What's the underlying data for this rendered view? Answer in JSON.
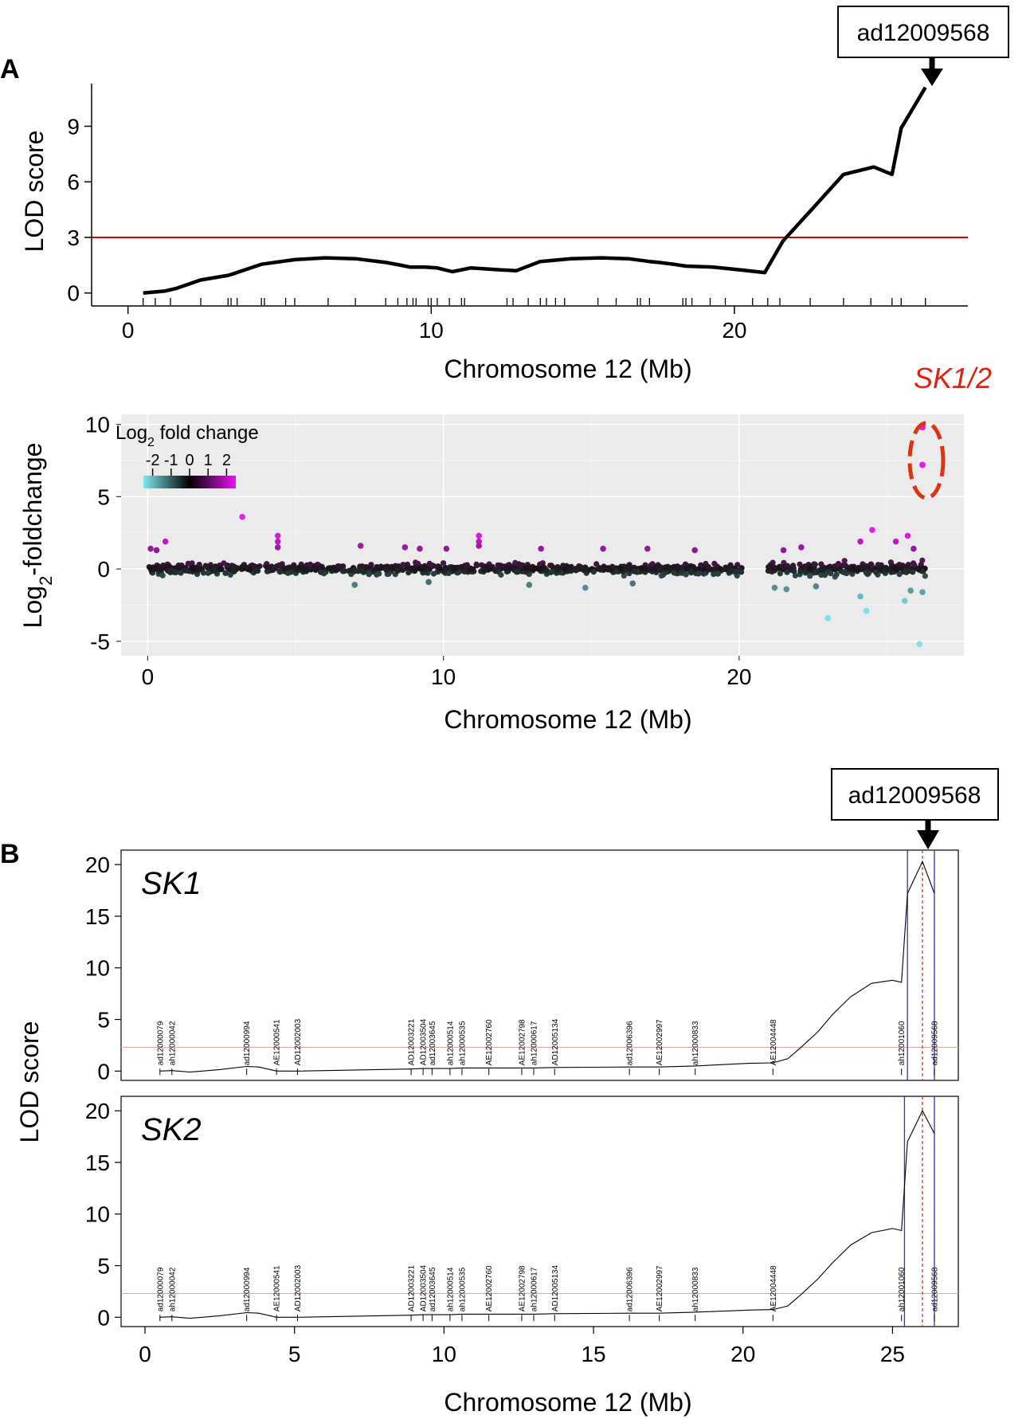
{
  "panel_a": {
    "letter": "A",
    "callout": "ad12009568",
    "sk_label": "SK1/2",
    "colors": {
      "threshold": "#cc0000",
      "line": "#000000",
      "ellipse": "#dd3311",
      "bg": "#ebebeb",
      "cyan": "#7fe0e8",
      "magenta": "#e020e8"
    }
  },
  "panel_b": {
    "letter": "B",
    "callout": "ad12009568",
    "markers": [
      "ad12000079",
      "ah12000042",
      "ad12000994",
      "AE12000541",
      "AD12002003",
      "AD12003221",
      "AD12003504",
      "ad12003645",
      "ah12000514",
      "ah12000535",
      "AE12002760",
      "AE12002798",
      "ah12000617",
      "AD12005134",
      "ad12006396",
      "AE12002997",
      "ah12000833",
      "AE12004448",
      "ah12001060",
      "ad12009568"
    ],
    "colors": {
      "frame": "#000000",
      "blue": "#3333aa",
      "red_dash": "#cc2222",
      "threshold": "#e8a0a0"
    }
  },
  "chart_data": [
    {
      "type": "line",
      "title": "",
      "xlabel": "Chromosome 12 (Mb)",
      "ylabel": "LOD score",
      "xlim": [
        -1.2,
        27.7
      ],
      "ylim": [
        -0.7,
        11.3
      ],
      "xticks": [
        "0",
        "10",
        "20"
      ],
      "yticks": [
        "0",
        "3",
        "6",
        "9"
      ],
      "threshold": 3.0,
      "x": [
        0.5,
        1.2,
        1.6,
        2.4,
        3.3,
        3.5,
        4.4,
        5.5,
        6.5,
        7.5,
        8.5,
        9.0,
        9.3,
        9.8,
        10.2,
        10.7,
        11.3,
        12.3,
        12.8,
        13.6,
        14.6,
        15.6,
        16.5,
        17.2,
        17.5,
        18.0,
        18.4,
        19.3,
        20.2,
        21.0,
        21.6,
        22.6,
        23.6,
        24.6,
        25.2,
        25.5,
        26.3
      ],
      "y": [
        0.0,
        0.1,
        0.25,
        0.7,
        0.95,
        1.05,
        1.55,
        1.8,
        1.9,
        1.85,
        1.65,
        1.5,
        1.4,
        1.4,
        1.35,
        1.15,
        1.35,
        1.25,
        1.2,
        1.7,
        1.85,
        1.9,
        1.85,
        1.7,
        1.65,
        1.55,
        1.45,
        1.4,
        1.25,
        1.1,
        2.8,
        4.6,
        6.4,
        6.8,
        6.4,
        8.9,
        11.1
      ],
      "marker_ticks": [
        0.5,
        0.9,
        1.4,
        2.4,
        3.3,
        3.4,
        3.6,
        4.4,
        4.5,
        5.2,
        5.5,
        6.6,
        7.5,
        8.5,
        8.9,
        9.2,
        9.4,
        9.5,
        9.9,
        10.0,
        10.2,
        10.6,
        11.0,
        11.1,
        12.5,
        12.7,
        13.2,
        13.6,
        13.8,
        14.1,
        14.4,
        15.5,
        16.1,
        16.8,
        16.9,
        17.2,
        18.3,
        18.4,
        18.6,
        19.2,
        19.7,
        20.6,
        21.1,
        21.5,
        22.5,
        23.6,
        24.5,
        25.2,
        25.5,
        26.3
      ]
    },
    {
      "type": "scatter",
      "title": "",
      "xlabel": "Chromosome 12 (Mb)",
      "ylabel": "Log2-foldchange",
      "xlim": [
        -0.9,
        27.6
      ],
      "ylim": [
        -6.0,
        10.7
      ],
      "xticks": [
        "0",
        "10",
        "20"
      ],
      "yticks": [
        "-5",
        "0",
        "5",
        "10"
      ],
      "legend": {
        "title": "Log2 fold change",
        "ticks": [
          "-2",
          "-1",
          "0",
          "1",
          "2"
        ],
        "range": [
          -2.5,
          2.5
        ],
        "position": "top-left"
      },
      "background_points": {
        "count": 950,
        "x_range": [
          0,
          26.3
        ],
        "y_spread": 0.35,
        "gaps": [
          [
            20.1,
            20.9
          ],
          [
            26.35,
            27.0
          ]
        ]
      },
      "highlighted_points": [
        {
          "x": 26.2,
          "y": 9.8,
          "label": "SK1/2"
        },
        {
          "x": 26.2,
          "y": 7.2,
          "label": "SK1/2"
        }
      ],
      "outliers": [
        {
          "x": 0.1,
          "y": 1.4
        },
        {
          "x": 0.3,
          "y": 1.3
        },
        {
          "x": 0.6,
          "y": 1.9
        },
        {
          "x": 3.2,
          "y": 3.6
        },
        {
          "x": 4.4,
          "y": 2.3
        },
        {
          "x": 4.4,
          "y": 1.9
        },
        {
          "x": 4.4,
          "y": 1.5
        },
        {
          "x": 7.2,
          "y": 1.6
        },
        {
          "x": 8.7,
          "y": 1.5
        },
        {
          "x": 9.2,
          "y": 1.4
        },
        {
          "x": 10.1,
          "y": 1.4
        },
        {
          "x": 11.2,
          "y": 2.3
        },
        {
          "x": 11.2,
          "y": 1.9
        },
        {
          "x": 11.2,
          "y": 1.6
        },
        {
          "x": 13.3,
          "y": 1.4
        },
        {
          "x": 15.4,
          "y": 1.4
        },
        {
          "x": 16.9,
          "y": 1.4
        },
        {
          "x": 18.5,
          "y": 1.3
        },
        {
          "x": 21.5,
          "y": 1.3
        },
        {
          "x": 22.1,
          "y": 1.5
        },
        {
          "x": 24.1,
          "y": 1.9
        },
        {
          "x": 24.5,
          "y": 2.7
        },
        {
          "x": 25.3,
          "y": 1.9
        },
        {
          "x": 25.7,
          "y": 2.3
        },
        {
          "x": 25.9,
          "y": 1.4
        },
        {
          "x": 22.6,
          "y": -1.2
        },
        {
          "x": 23.0,
          "y": -3.4
        },
        {
          "x": 24.1,
          "y": -1.9
        },
        {
          "x": 24.3,
          "y": -2.9
        },
        {
          "x": 25.6,
          "y": -2.2
        },
        {
          "x": 25.8,
          "y": -1.5
        },
        {
          "x": 26.1,
          "y": -5.2
        },
        {
          "x": 26.2,
          "y": -1.6
        },
        {
          "x": 14.8,
          "y": -1.3
        },
        {
          "x": 12.9,
          "y": -1.1
        },
        {
          "x": 7.0,
          "y": -1.1
        },
        {
          "x": 9.5,
          "y": -0.9
        },
        {
          "x": 16.4,
          "y": -1.0
        },
        {
          "x": 21.2,
          "y": -1.3
        },
        {
          "x": 21.6,
          "y": -1.4
        }
      ]
    },
    {
      "type": "line",
      "label": "SK1",
      "xlabel": "",
      "ylabel": "LOD score",
      "xlim": [
        -0.8,
        27.2
      ],
      "ylim": [
        -0.9,
        21.4
      ],
      "yticks": [
        "0",
        "5",
        "10",
        "15",
        "20"
      ],
      "threshold": 2.3,
      "x": [
        0.5,
        0.9,
        1.5,
        2.5,
        3.4,
        3.8,
        4.4,
        5.1,
        8.9,
        9.3,
        9.6,
        10.2,
        10.6,
        11.5,
        12.6,
        13.0,
        13.7,
        16.2,
        17.2,
        18.4,
        20.2,
        21.0,
        21.5,
        21.9,
        22.5,
        23.0,
        23.6,
        24.3,
        25.0,
        25.3,
        25.5,
        26.0,
        26.4
      ],
      "y": [
        0.0,
        0.05,
        -0.1,
        0.15,
        0.45,
        0.4,
        0.0,
        0.0,
        0.2,
        0.25,
        0.25,
        0.25,
        0.3,
        0.3,
        0.3,
        0.3,
        0.35,
        0.4,
        0.4,
        0.5,
        0.75,
        0.8,
        1.2,
        2.2,
        3.8,
        5.5,
        7.2,
        8.5,
        8.8,
        8.6,
        17.2,
        20.3,
        17.2
      ],
      "vlines_blue": [
        25.5,
        26.4
      ],
      "vline_red_dashed": 26.0
    },
    {
      "type": "line",
      "label": "SK2",
      "xlabel": "Chromosome 12 (Mb)",
      "ylabel": "LOD score",
      "xlim": [
        -0.8,
        27.2
      ],
      "ylim": [
        -0.9,
        21.4
      ],
      "xticks": [
        "0",
        "5",
        "10",
        "15",
        "20",
        "25"
      ],
      "yticks": [
        "0",
        "5",
        "10",
        "15",
        "20"
      ],
      "threshold": 2.3,
      "x": [
        0.5,
        0.9,
        1.5,
        2.5,
        3.4,
        3.8,
        4.4,
        5.1,
        8.9,
        9.3,
        9.6,
        10.2,
        10.6,
        11.5,
        12.6,
        13.0,
        13.7,
        16.2,
        17.2,
        18.4,
        20.2,
        21.0,
        21.5,
        21.9,
        22.5,
        23.0,
        23.6,
        24.3,
        25.0,
        25.3,
        25.5,
        26.0,
        26.4
      ],
      "y": [
        0.0,
        0.05,
        -0.1,
        0.15,
        0.45,
        0.4,
        0.0,
        0.0,
        0.2,
        0.25,
        0.25,
        0.25,
        0.3,
        0.3,
        0.3,
        0.3,
        0.35,
        0.4,
        0.4,
        0.5,
        0.7,
        0.75,
        1.1,
        2.1,
        3.7,
        5.3,
        7.0,
        8.2,
        8.6,
        8.4,
        17.0,
        20.0,
        17.8
      ],
      "vlines_blue": [
        25.4,
        26.4
      ],
      "vline_red_dashed": 26.0
    }
  ],
  "marker_positions": [
    0.5,
    0.9,
    3.4,
    4.4,
    5.1,
    8.9,
    9.3,
    9.6,
    10.2,
    10.6,
    11.5,
    12.6,
    13.0,
    13.7,
    16.2,
    17.2,
    18.4,
    21.0,
    25.3,
    26.4
  ]
}
